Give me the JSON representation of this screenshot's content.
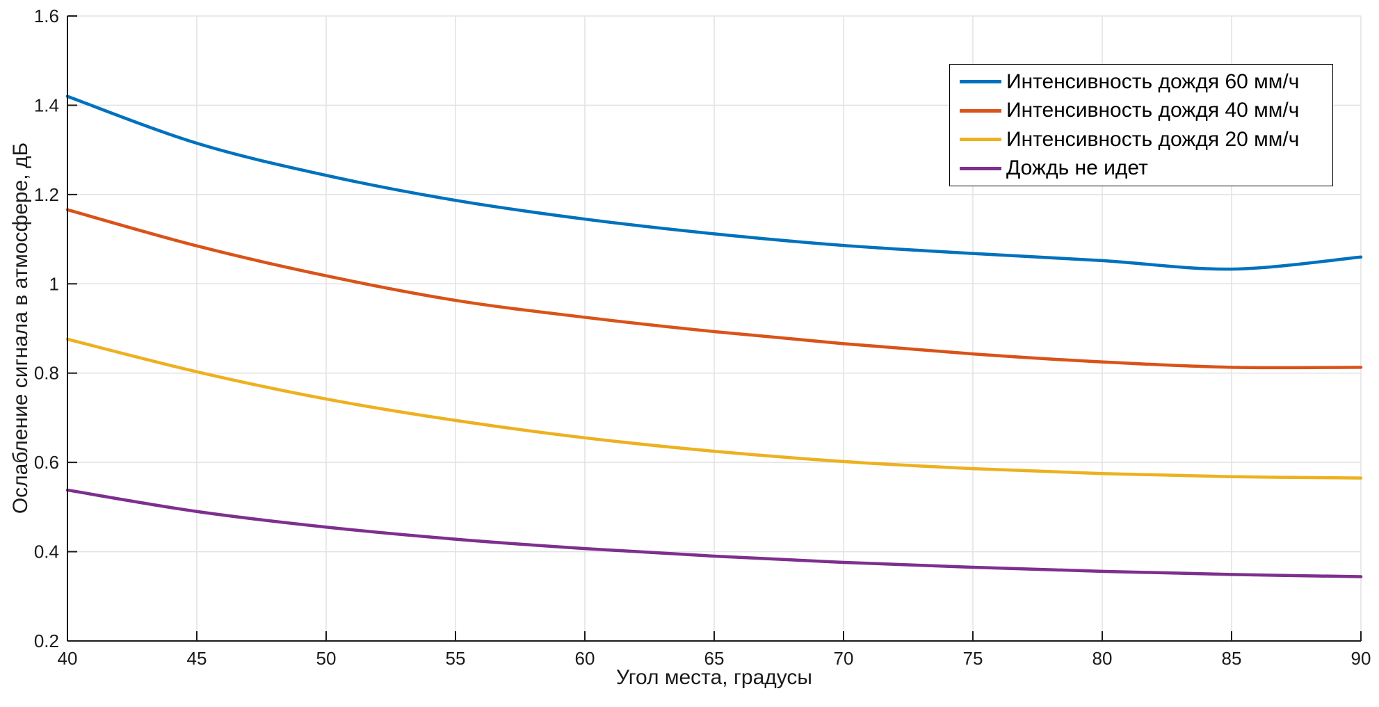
{
  "chart_data": {
    "type": "line",
    "title": "",
    "xlabel": "Угол места, градусы",
    "ylabel": "Ослабление сигнала в атмосфере, дБ",
    "xlim": [
      40,
      90
    ],
    "ylim": [
      0.2,
      1.6
    ],
    "xticks": [
      "40",
      "45",
      "50",
      "55",
      "60",
      "65",
      "70",
      "75",
      "80",
      "85",
      "90"
    ],
    "yticks": [
      "0.2",
      "0.4",
      "0.6",
      "0.8",
      "1",
      "1.2",
      "1.4",
      "1.6"
    ],
    "grid": true,
    "legend_position": "top-right",
    "x": [
      40,
      45,
      50,
      55,
      60,
      65,
      70,
      75,
      80,
      85,
      90
    ],
    "series": [
      {
        "label": "Интенсивность дождя 60 мм/ч",
        "color": "#0072BD",
        "values": [
          1.42,
          1.315,
          1.243,
          1.187,
          1.145,
          1.112,
          1.086,
          1.068,
          1.052,
          1.033,
          1.06
        ]
      },
      {
        "label": "Интенсивность дождя 40 мм/ч",
        "color": "#D95319",
        "values": [
          1.166,
          1.085,
          1.018,
          0.963,
          0.925,
          0.893,
          0.866,
          0.843,
          0.825,
          0.813,
          0.813
        ]
      },
      {
        "label": "Интенсивность дождя 20 мм/ч",
        "color": "#EDB120",
        "values": [
          0.876,
          0.803,
          0.742,
          0.694,
          0.655,
          0.625,
          0.602,
          0.586,
          0.575,
          0.568,
          0.565
        ]
      },
      {
        "label": "Дождь не идет",
        "color": "#7E2F8E",
        "values": [
          0.538,
          0.49,
          0.455,
          0.428,
          0.407,
          0.39,
          0.376,
          0.365,
          0.356,
          0.349,
          0.344
        ]
      }
    ],
    "axis_color": "#1a1a1a",
    "grid_color": "#e2e2e2"
  }
}
